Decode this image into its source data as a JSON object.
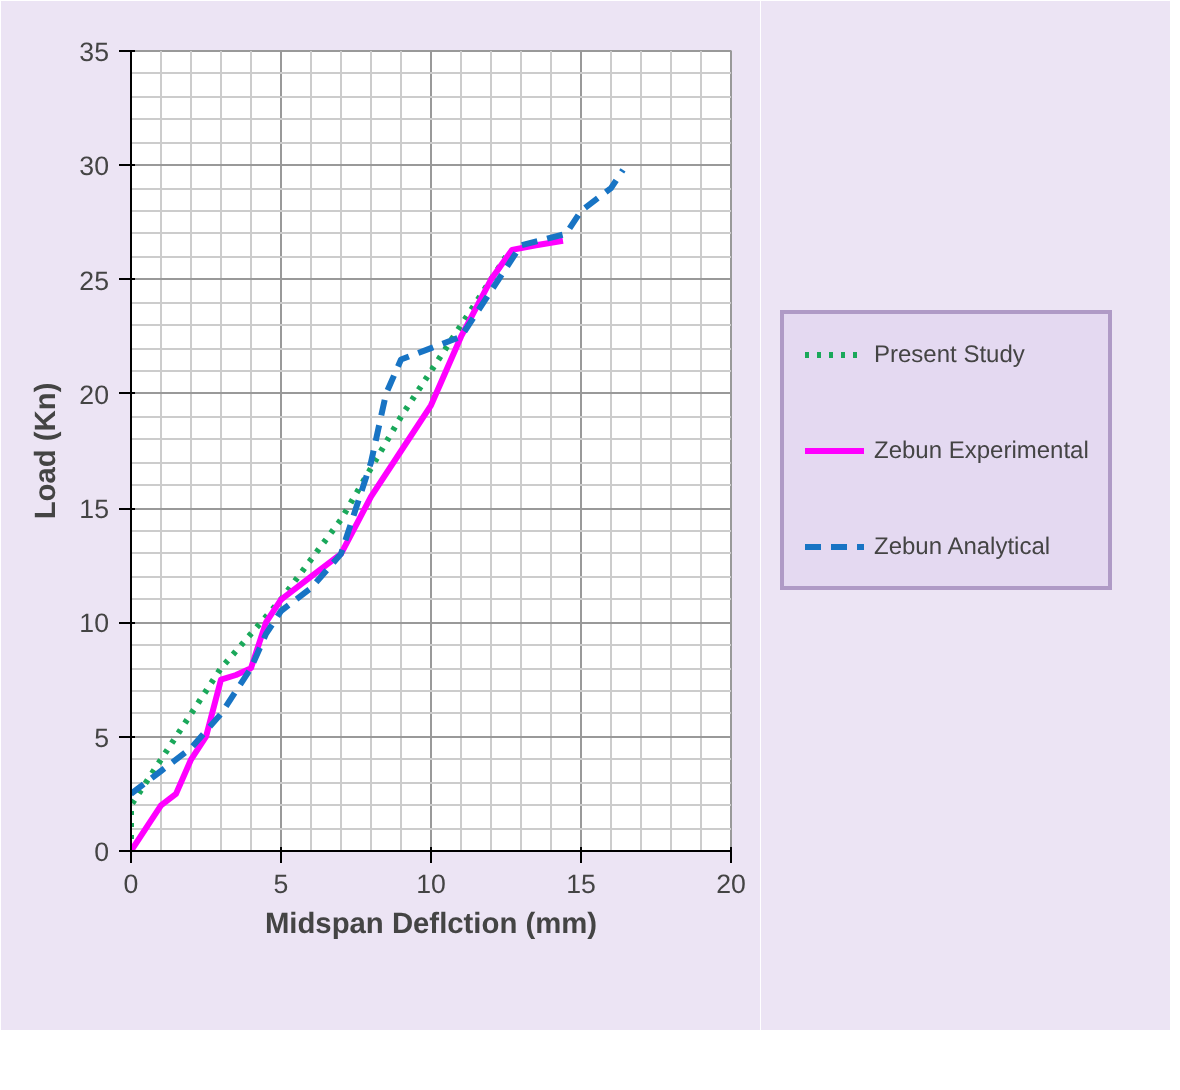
{
  "chart_data": {
    "type": "line",
    "xlabel": "Midspan Deflction (mm)",
    "ylabel": "Load (Kn)",
    "xlim": [
      0,
      20
    ],
    "ylim": [
      0,
      35
    ],
    "xticks": [
      0,
      5,
      10,
      15,
      20
    ],
    "yticks": [
      0,
      5,
      10,
      15,
      20,
      25,
      30,
      35
    ],
    "grid": true,
    "legend": "right",
    "series": [
      {
        "name": "Present Study",
        "color": "#1aa85a",
        "line_style": "dotted",
        "x": [
          0,
          0,
          1,
          2,
          3,
          5,
          7,
          9,
          11,
          12.5
        ],
        "values": [
          0,
          2,
          4,
          6,
          8,
          11,
          14.5,
          19,
          23,
          26
        ]
      },
      {
        "name": "Zebun Experimental",
        "color": "#ff00ff",
        "line_style": "solid",
        "x": [
          0,
          0.5,
          1,
          1.5,
          2,
          2.5,
          3,
          3.5,
          4,
          4.5,
          5,
          6,
          7,
          8,
          9,
          10,
          11,
          12,
          12.7,
          13.5,
          14.4
        ],
        "values": [
          0,
          1,
          2,
          2.5,
          4,
          5,
          7.5,
          7.7,
          8,
          10,
          11,
          12,
          13,
          15.5,
          17.5,
          19.5,
          22.5,
          25,
          26.3,
          26.5,
          26.7
        ]
      },
      {
        "name": "Zebun Analytical",
        "color": "#1874c4",
        "line_style": "dashed",
        "x": [
          0,
          1,
          2,
          3,
          4,
          4.5,
          5,
          6,
          7,
          8,
          8.5,
          9,
          10,
          11,
          12,
          13,
          14.5,
          15,
          16,
          16.4
        ],
        "values": [
          2.5,
          3.5,
          4.5,
          6,
          8,
          9.5,
          10.5,
          11.5,
          13,
          17,
          20,
          21.5,
          22,
          22.5,
          24.5,
          26.5,
          27,
          28,
          29,
          29.8
        ]
      }
    ]
  }
}
